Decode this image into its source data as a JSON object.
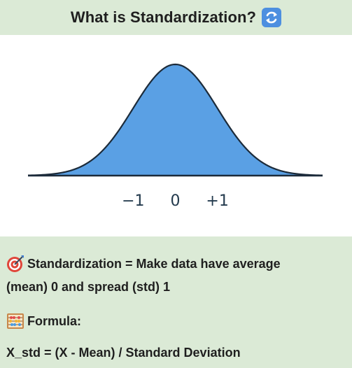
{
  "header": {
    "title": "What is Standardization?",
    "icon": "swap-arrows-icon",
    "icon_color": "#4d8fe0"
  },
  "chart_data": {
    "type": "area",
    "curve": "standard-normal-density",
    "mean": 0,
    "std": 1,
    "xlim": [
      -3.5,
      3.5
    ],
    "ticks": [
      {
        "value": -1,
        "label": "−1"
      },
      {
        "value": 0,
        "label": "0"
      },
      {
        "value": 1,
        "label": "+1"
      }
    ],
    "fill_color": "#5aa0e4",
    "stroke_color": "#1c2b3a",
    "grid": false
  },
  "info": {
    "definition_icon": "target-icon",
    "definition_line1": "Standardization = Make data have average",
    "definition_line2": "(mean) 0 and spread (std) 1",
    "formula_icon": "abacus-icon",
    "formula_label": "Formula:",
    "formula": "X_std = (X - Mean) / Standard Deviation"
  }
}
